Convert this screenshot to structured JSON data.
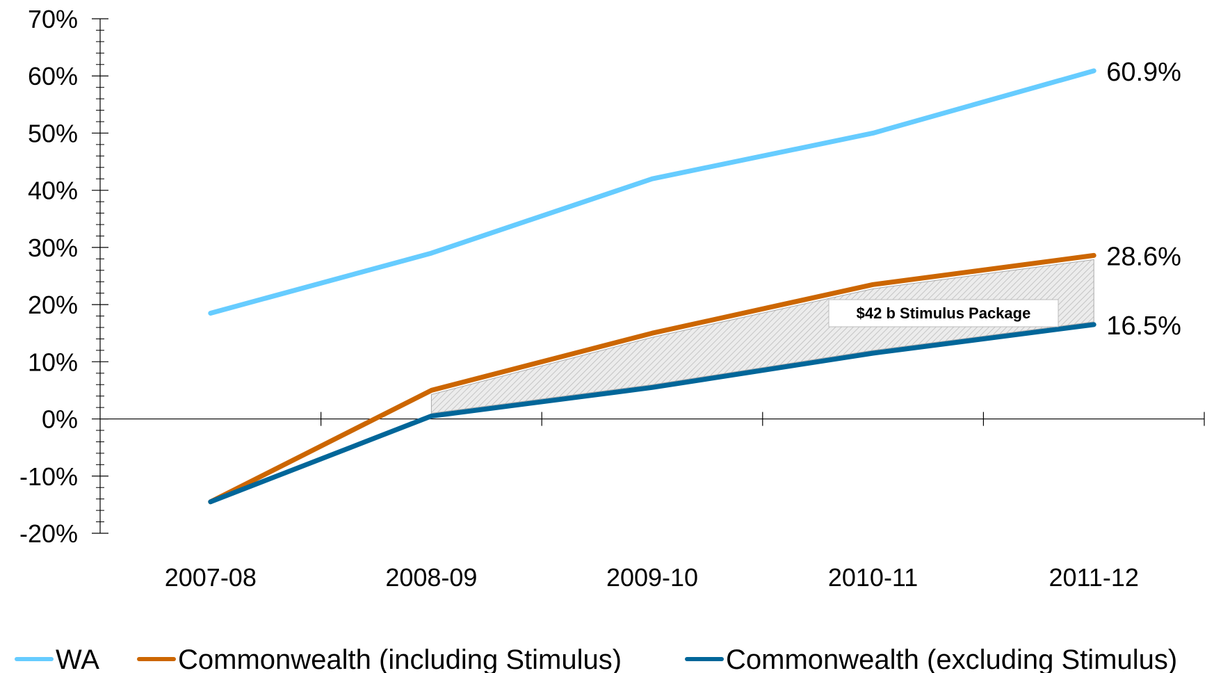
{
  "chart_data": {
    "type": "line",
    "categories": [
      "2007-08",
      "2008-09",
      "2009-10",
      "2010-11",
      "2011-12"
    ],
    "ylim": [
      -20,
      70
    ],
    "y_ticks": [
      "-20%",
      "-10%",
      "0%",
      "10%",
      "20%",
      "30%",
      "40%",
      "50%",
      "60%",
      "70%"
    ],
    "y_tick_values": [
      -20,
      -10,
      0,
      10,
      20,
      30,
      40,
      50,
      60,
      70
    ],
    "series": [
      {
        "name": "WA",
        "color": "#66ccff",
        "values": [
          18.5,
          29.0,
          42.0,
          50.0,
          60.9
        ],
        "end_label": "60.9%"
      },
      {
        "name": "Commonwealth (including Stimulus)",
        "color": "#cc6600",
        "values": [
          -14.5,
          5.0,
          15.0,
          23.5,
          28.6
        ],
        "end_label": "28.6%"
      },
      {
        "name": "Commonwealth (excluding Stimulus)",
        "color": "#006699",
        "values": [
          -14.5,
          0.5,
          5.5,
          11.5,
          16.5
        ],
        "end_label": "16.5%"
      }
    ],
    "annotation": {
      "text": "$42 b Stimulus Package"
    },
    "legend_position": "bottom",
    "grid": false
  }
}
